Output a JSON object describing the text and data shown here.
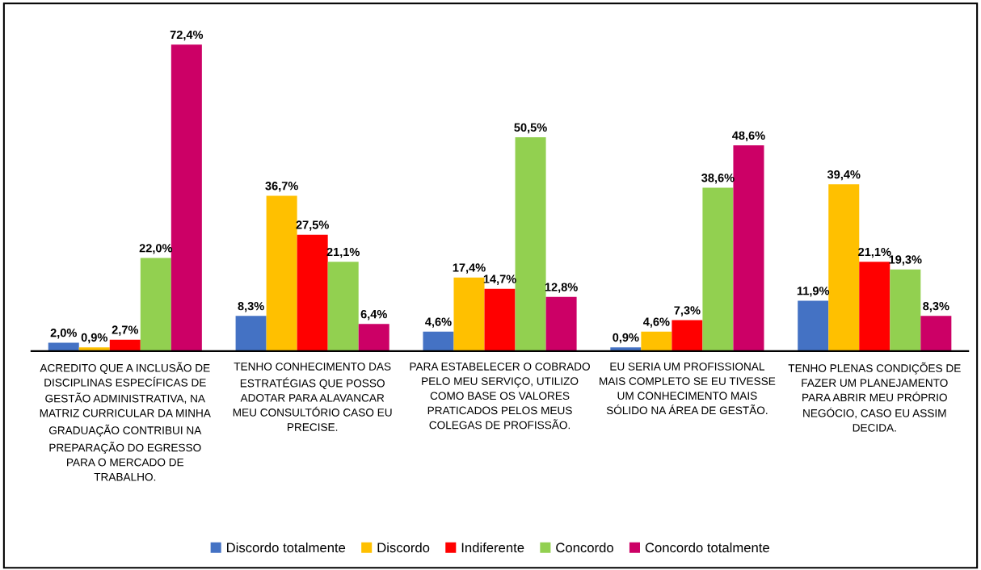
{
  "chart_data": {
    "type": "bar",
    "categories": [
      "ACREDITO QUE A INCLUSÃO DE\nDISCIPLINAS ESPECÍFICAS DE\nGESTÃO ADMINISTRATIVA, NA\nMATRIZ CURRICULAR DA MINHA\nGRADUAÇÃO CONTRIBUI NA\nPREPARAÇÃO DO EGRESSO\nPARA O MERCADO DE\nTRABALHO.",
      "TENHO CONHECIMENTO DAS\nESTRATÉGIAS QUE POSSO\nADOTAR PARA ALAVANCAR\nMEU CONSULTÓRIO CASO EU\nPRECISE.",
      "PARA ESTABELECER O COBRADO\nPELO MEU SERVIÇO, UTILIZO\nCOMO BASE OS VALORES\nPRATICADOS PELOS MEUS\nCOLEGAS DE PROFISSÃO.",
      "EU SERIA UM PROFISSIONAL\nMAIS COMPLETO SE EU TIVESSE\nUM CONHECIMENTO MAIS\nSÓLIDO NA ÁREA DE GESTÃO.",
      "TENHO PLENAS CONDIÇÕES DE\nFAZER UM PLANEJAMENTO\nPARA ABRIR MEU PRÓPRIO\nNEGÓCIO, CASO EU ASSIM\nDECIDA."
    ],
    "series": [
      {
        "name": "Discordo totalmente",
        "color": "#4472c4",
        "values": [
          2.0,
          8.3,
          4.6,
          0.9,
          11.9
        ],
        "value_labels": [
          "2,0%",
          "8,3%",
          "4,6%",
          "0,9%",
          "11,9%"
        ]
      },
      {
        "name": "Discordo",
        "color": "#ffc000",
        "values": [
          0.9,
          36.7,
          17.4,
          4.6,
          39.4
        ],
        "value_labels": [
          "0,9%",
          "36,7%",
          "17,4%",
          "4,6%",
          "39,4%"
        ]
      },
      {
        "name": "Indiferente",
        "color": "#ff0000",
        "values": [
          2.7,
          27.5,
          14.7,
          7.3,
          21.1
        ],
        "value_labels": [
          "2,7%",
          "27,5%",
          "14,7%",
          "7,3%",
          "21,1%"
        ]
      },
      {
        "name": "Concordo",
        "color": "#92d050",
        "values": [
          22.0,
          21.1,
          50.5,
          38.6,
          19.3
        ],
        "value_labels": [
          "22,0%",
          "21,1%",
          "50,5%",
          "38,6%",
          "19,3%"
        ]
      },
      {
        "name": "Concordo totalmente",
        "color": "#cc0066",
        "values": [
          72.4,
          6.4,
          12.8,
          48.6,
          8.3
        ],
        "value_labels": [
          "72,4%",
          "6,4%",
          "12,8%",
          "48,6%",
          "8,3%"
        ]
      }
    ],
    "legend": "bottom",
    "grid": false
  }
}
